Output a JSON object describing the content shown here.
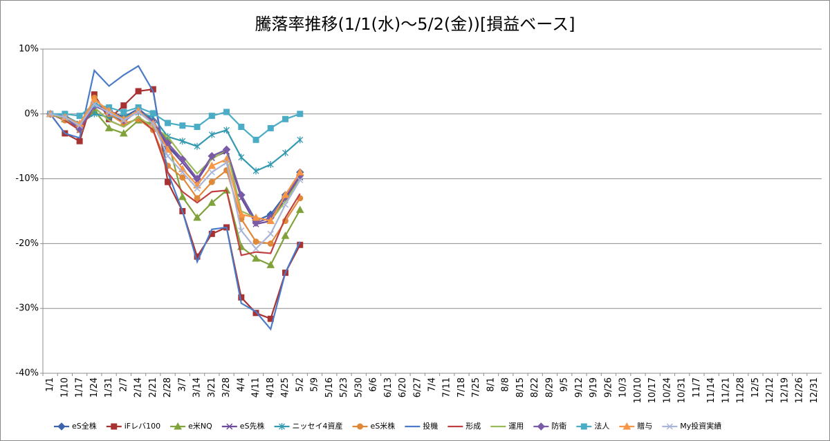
{
  "chart_data": {
    "type": "line",
    "title": "騰落率推移(1/1(水)～5/2(金))[損益ベース]",
    "categories": [
      "1/1",
      "1/10",
      "1/17",
      "1/24",
      "1/31",
      "2/7",
      "2/14",
      "2/21",
      "2/28",
      "3/7",
      "3/14",
      "3/21",
      "3/28",
      "4/4",
      "4/11",
      "4/18",
      "4/25",
      "5/2",
      "5/9",
      "5/16",
      "5/23",
      "5/30",
      "6/6",
      "6/13",
      "6/20",
      "6/27",
      "7/4",
      "7/11",
      "7/18",
      "7/25",
      "8/1",
      "8/8",
      "8/15",
      "8/22",
      "8/29",
      "9/5",
      "9/12",
      "9/19",
      "9/26",
      "10/3",
      "10/10",
      "10/17",
      "10/24",
      "10/31",
      "11/7",
      "11/14",
      "11/21",
      "11/28",
      "12/5",
      "12/12",
      "12/19",
      "12/26",
      "12/31"
    ],
    "ylim": [
      -40,
      10
    ],
    "yticks": [
      {
        "value": -40,
        "label": "-40%"
      },
      {
        "value": -30,
        "label": "-30%"
      },
      {
        "value": -20,
        "label": "-20%"
      },
      {
        "value": -10,
        "label": "-10%"
      },
      {
        "value": 0,
        "label": "0%"
      },
      {
        "value": 10,
        "label": "10%"
      }
    ],
    "grid": true,
    "legend": "bottom",
    "series": [
      {
        "name": "eS全株",
        "color": "#3c64ac",
        "marker": "diamond",
        "values": [
          0,
          -0.5,
          -2,
          1.5,
          0.5,
          -0.5,
          0.8,
          -1,
          -5,
          -7,
          -10,
          -6.5,
          -5.5,
          -12.5,
          -16.5,
          -15.5,
          -12.5,
          -9,
          null,
          null,
          null,
          null,
          null,
          null,
          null,
          null,
          null,
          null,
          null,
          null,
          null,
          null,
          null,
          null,
          null,
          null,
          null,
          null,
          null,
          null,
          null,
          null,
          null,
          null,
          null,
          null,
          null,
          null,
          null,
          null,
          null,
          null,
          null
        ]
      },
      {
        "name": "iFレバ100",
        "color": "#a83232",
        "marker": "square",
        "values": [
          0,
          -3,
          -4.2,
          3,
          -0.8,
          1.3,
          3.5,
          3.8,
          -10.5,
          -15,
          -22,
          -18.5,
          -17.5,
          -28.3,
          -30.7,
          -31.6,
          -24.5,
          -20.2,
          null,
          null,
          null,
          null,
          null,
          null,
          null,
          null,
          null,
          null,
          null,
          null,
          null,
          null,
          null,
          null,
          null,
          null,
          null,
          null,
          null,
          null,
          null,
          null,
          null,
          null,
          null,
          null,
          null,
          null,
          null,
          null,
          null,
          null,
          null
        ]
      },
      {
        "name": "e米NQ",
        "color": "#7fa23a",
        "marker": "triangle",
        "values": [
          0,
          -0.8,
          -2,
          0.5,
          -2.2,
          -3,
          -1,
          -1.5,
          -4,
          -12.8,
          -16,
          -13.7,
          -11.8,
          -20.5,
          -22.3,
          -23.3,
          -18.8,
          -14.8,
          null,
          null,
          null,
          null,
          null,
          null,
          null,
          null,
          null,
          null,
          null,
          null,
          null,
          null,
          null,
          null,
          null,
          null,
          null,
          null,
          null,
          null,
          null,
          null,
          null,
          null,
          null,
          null,
          null,
          null,
          null,
          null,
          null,
          null,
          null
        ]
      },
      {
        "name": "eS先株",
        "color": "#6a4a9a",
        "marker": "x",
        "values": [
          0,
          -0.5,
          -2.5,
          1.5,
          0,
          -1.2,
          0.5,
          -1.5,
          -5,
          -7.5,
          -10.3,
          -6.8,
          -5.8,
          -13,
          -17,
          -16.5,
          -13,
          -9.8,
          null,
          null,
          null,
          null,
          null,
          null,
          null,
          null,
          null,
          null,
          null,
          null,
          null,
          null,
          null,
          null,
          null,
          null,
          null,
          null,
          null,
          null,
          null,
          null,
          null,
          null,
          null,
          null,
          null,
          null,
          null,
          null,
          null,
          null,
          null
        ]
      },
      {
        "name": "ニッセイ4資産",
        "color": "#3399b0",
        "marker": "asterisk",
        "values": [
          0,
          -0.3,
          -1.5,
          0,
          -0.5,
          -0.5,
          0.2,
          -0.5,
          -3.5,
          -4.2,
          -5,
          -3.2,
          -2.5,
          -6.7,
          -8.8,
          -7.8,
          -6,
          -4,
          null,
          null,
          null,
          null,
          null,
          null,
          null,
          null,
          null,
          null,
          null,
          null,
          null,
          null,
          null,
          null,
          null,
          null,
          null,
          null,
          null,
          null,
          null,
          null,
          null,
          null,
          null,
          null,
          null,
          null,
          null,
          null,
          null,
          null,
          null
        ]
      },
      {
        "name": "eS米株",
        "color": "#e0883a",
        "marker": "circle",
        "values": [
          0,
          -1,
          -2.5,
          2.5,
          0,
          -1.5,
          -0.8,
          -2.5,
          -8,
          -9.8,
          -13,
          -10.5,
          -8.7,
          -16.2,
          -19.7,
          -20,
          -16.5,
          -13,
          null,
          null,
          null,
          null,
          null,
          null,
          null,
          null,
          null,
          null,
          null,
          null,
          null,
          null,
          null,
          null,
          null,
          null,
          null,
          null,
          null,
          null,
          null,
          null,
          null,
          null,
          null,
          null,
          null,
          null,
          null,
          null,
          null,
          null,
          null
        ]
      },
      {
        "name": "投機",
        "color": "#4a7ac8",
        "marker": "none",
        "values": [
          0,
          -3,
          -3.7,
          6.7,
          4.3,
          6,
          7.4,
          3.5,
          -9,
          -15,
          -22.8,
          -17.8,
          -17.5,
          -29.2,
          -30.5,
          -33.2,
          -24.5,
          -19.7,
          null,
          null,
          null,
          null,
          null,
          null,
          null,
          null,
          null,
          null,
          null,
          null,
          null,
          null,
          null,
          null,
          null,
          null,
          null,
          null,
          null,
          null,
          null,
          null,
          null,
          null,
          null,
          null,
          null,
          null,
          null,
          null,
          null,
          null,
          null
        ]
      },
      {
        "name": "形成",
        "color": "#c04040",
        "marker": "none",
        "values": [
          0,
          -1,
          -2.5,
          1,
          -1,
          -2,
          -0.5,
          -2.5,
          -9,
          -12,
          -13.7,
          -12,
          -11.8,
          -21.8,
          -21.3,
          -21.5,
          -16,
          -12.3,
          null,
          null,
          null,
          null,
          null,
          null,
          null,
          null,
          null,
          null,
          null,
          null,
          null,
          null,
          null,
          null,
          null,
          null,
          null,
          null,
          null,
          null,
          null,
          null,
          null,
          null,
          null,
          null,
          null,
          null,
          null,
          null,
          null,
          null,
          null
        ]
      },
      {
        "name": "運用",
        "color": "#98b954",
        "marker": "none",
        "values": [
          0,
          -0.8,
          -2,
          1,
          -1,
          -2,
          -0.5,
          -2,
          -3.5,
          -6.5,
          -9.2,
          -7,
          -5.5,
          -15,
          -16,
          -16.5,
          -13.5,
          -10,
          null,
          null,
          null,
          null,
          null,
          null,
          null,
          null,
          null,
          null,
          null,
          null,
          null,
          null,
          null,
          null,
          null,
          null,
          null,
          null,
          null,
          null,
          null,
          null,
          null,
          null,
          null,
          null,
          null,
          null,
          null,
          null,
          null,
          null,
          null
        ]
      },
      {
        "name": "防衛",
        "color": "#7b5aa6",
        "marker": "diamond",
        "values": [
          0,
          -0.5,
          -2.3,
          1.2,
          0.3,
          -1,
          0.5,
          -1.2,
          -4.5,
          -7,
          -10,
          -6.5,
          -5.5,
          -12.5,
          -16.8,
          -16,
          -12.8,
          -9.5,
          null,
          null,
          null,
          null,
          null,
          null,
          null,
          null,
          null,
          null,
          null,
          null,
          null,
          null,
          null,
          null,
          null,
          null,
          null,
          null,
          null,
          null,
          null,
          null,
          null,
          null,
          null,
          null,
          null,
          null,
          null,
          null,
          null,
          null,
          null
        ]
      },
      {
        "name": "法人",
        "color": "#4bacc6",
        "marker": "square",
        "values": [
          0,
          0,
          -0.3,
          1.5,
          1,
          0.3,
          1,
          0.1,
          -1.4,
          -1.8,
          -2,
          -0.3,
          0.3,
          -2,
          -4,
          -2.2,
          -0.8,
          0,
          null,
          null,
          null,
          null,
          null,
          null,
          null,
          null,
          null,
          null,
          null,
          null,
          null,
          null,
          null,
          null,
          null,
          null,
          null,
          null,
          null,
          null,
          null,
          null,
          null,
          null,
          null,
          null,
          null,
          null,
          null,
          null,
          null,
          null,
          null
        ]
      },
      {
        "name": "贈与",
        "color": "#f79646",
        "marker": "triangle",
        "values": [
          0,
          -0.5,
          -1.5,
          2.2,
          0.5,
          -0.8,
          0.5,
          -1.5,
          -5.5,
          -8.5,
          -11,
          -8,
          -7,
          -15.5,
          -16,
          -16.5,
          -12.5,
          -9,
          null,
          null,
          null,
          null,
          null,
          null,
          null,
          null,
          null,
          null,
          null,
          null,
          null,
          null,
          null,
          null,
          null,
          null,
          null,
          null,
          null,
          null,
          null,
          null,
          null,
          null,
          null,
          null,
          null,
          null,
          null,
          null,
          null,
          null,
          null
        ]
      },
      {
        "name": "My投資実績",
        "color": "#a8b4d8",
        "marker": "x",
        "values": [
          0,
          -0.5,
          -1.8,
          1.5,
          0.2,
          -1,
          0.3,
          -1.5,
          -6.5,
          -9,
          -11.5,
          -9,
          -7.5,
          -18,
          -20.8,
          -18.5,
          -14,
          -10.2,
          null,
          null,
          null,
          null,
          null,
          null,
          null,
          null,
          null,
          null,
          null,
          null,
          null,
          null,
          null,
          null,
          null,
          null,
          null,
          null,
          null,
          null,
          null,
          null,
          null,
          null,
          null,
          null,
          null,
          null,
          null,
          null,
          null,
          null,
          null
        ]
      }
    ]
  }
}
